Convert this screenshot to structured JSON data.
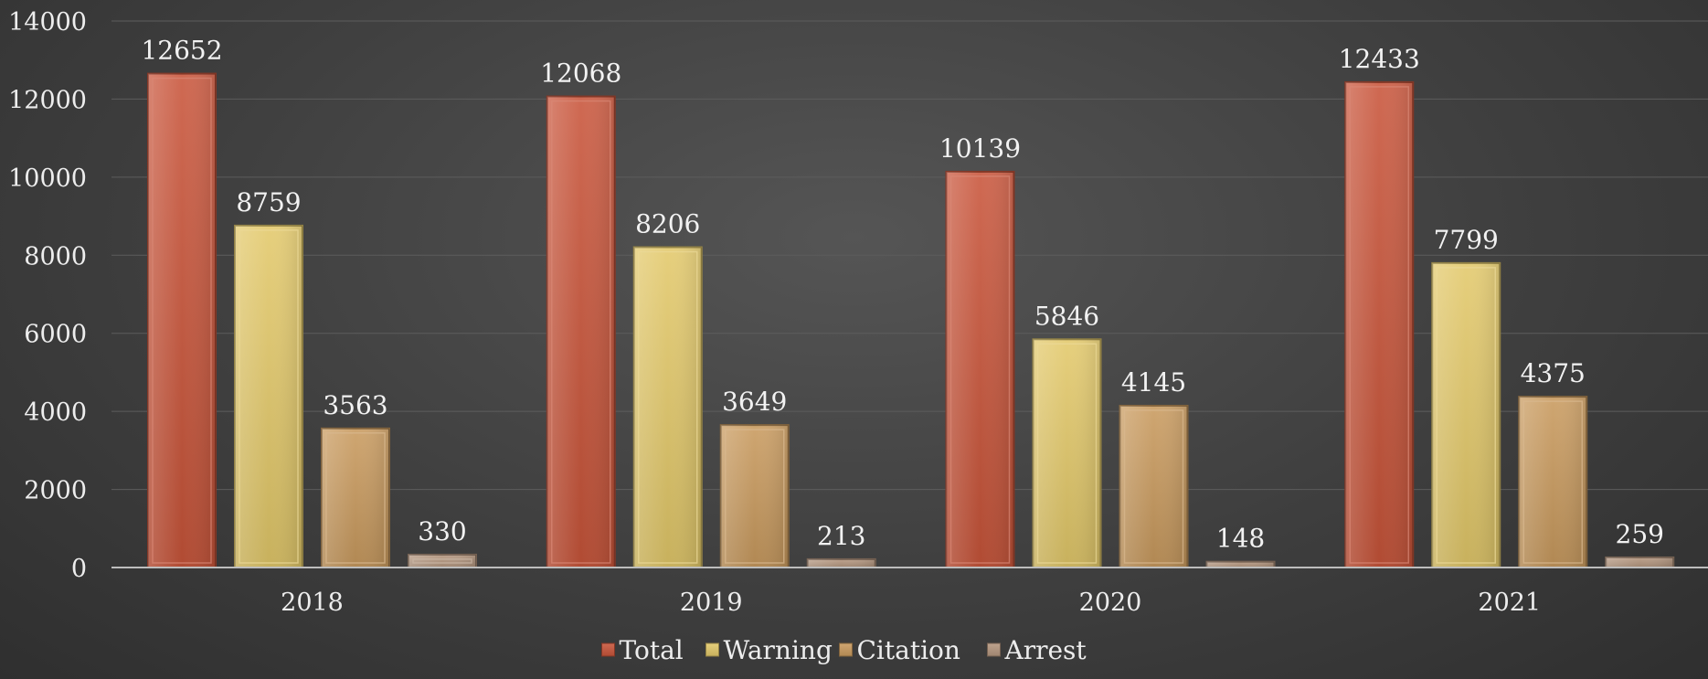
{
  "chart_data": {
    "type": "bar",
    "title": "",
    "xlabel": "",
    "ylabel": "",
    "categories": [
      "2018",
      "2019",
      "2020",
      "2021"
    ],
    "series": [
      {
        "name": "Total",
        "values": [
          12652,
          12068,
          10139,
          12433
        ],
        "color": "#c9553a"
      },
      {
        "name": "Warning",
        "values": [
          8759,
          8206,
          5846,
          7799
        ],
        "color": "#e3c96a"
      },
      {
        "name": "Citation",
        "values": [
          3563,
          3649,
          4145,
          4375
        ],
        "color": "#c99a5e"
      },
      {
        "name": "Arrest",
        "values": [
          330,
          213,
          148,
          259
        ],
        "color": "#b5977f"
      }
    ],
    "ylim": [
      0,
      14000
    ],
    "yticks": [
      0,
      2000,
      4000,
      6000,
      8000,
      10000,
      12000,
      14000
    ],
    "grid": true,
    "data_labels": true,
    "legend_position": "bottom"
  }
}
